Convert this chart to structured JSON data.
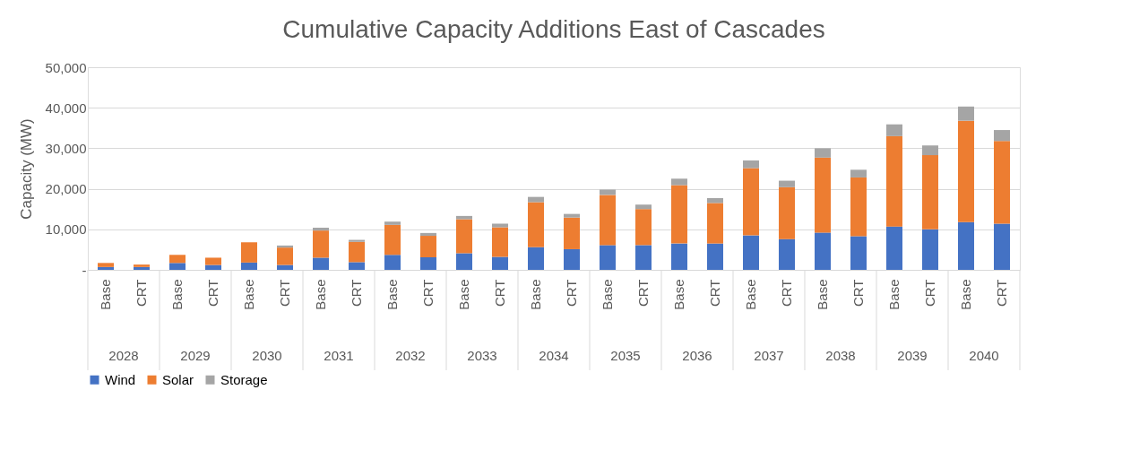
{
  "chart_data": {
    "type": "bar",
    "title": "Cumulative Capacity Additions East of Cascades",
    "ylabel": "Capacity (MW)",
    "categories": [
      "Base",
      "CRT",
      "Base",
      "CRT",
      "Base",
      "CRT",
      "Base",
      "CRT",
      "Base",
      "CRT",
      "Base",
      "CRT",
      "Base",
      "CRT",
      "Base",
      "CRT",
      "Base",
      "CRT",
      "Base",
      "CRT",
      "Base",
      "CRT",
      "Base",
      "CRT",
      "Base",
      "CRT"
    ],
    "annotations": [
      "2028",
      "2029",
      "2030",
      "2031",
      "2032",
      "2033",
      "2034",
      "2035",
      "2036",
      "2037",
      "2038",
      "2039",
      "2040"
    ],
    "stacked": true,
    "series": [
      {
        "name": "Wind",
        "color": "#4472c4",
        "values": [
          700,
          700,
          1700,
          1200,
          1800,
          1200,
          3000,
          1900,
          3700,
          3100,
          4100,
          3200,
          5600,
          5100,
          6100,
          6100,
          6500,
          6500,
          8500,
          7600,
          9200,
          8300,
          10700,
          10000,
          11800,
          11400
        ]
      },
      {
        "name": "Solar",
        "color": "#ed7d31",
        "values": [
          1000,
          600,
          2000,
          1800,
          5000,
          4300,
          6700,
          5000,
          7400,
          5300,
          8400,
          7300,
          11100,
          7800,
          12400,
          8900,
          14400,
          10000,
          16600,
          12800,
          18500,
          14500,
          22300,
          18300,
          25000,
          20400
        ]
      },
      {
        "name": "Storage",
        "color": "#a5a5a5",
        "values": [
          null,
          null,
          null,
          null,
          null,
          500,
          700,
          500,
          800,
          700,
          800,
          900,
          1300,
          900,
          1300,
          1100,
          1600,
          1200,
          1900,
          1600,
          2300,
          1900,
          2900,
          2400,
          3500,
          2700
        ]
      }
    ],
    "ylim": [
      0,
      50000
    ],
    "yticks": [
      {
        "value": 0,
        "label": "-"
      },
      {
        "value": 10000,
        "label": "10,000"
      },
      {
        "value": 20000,
        "label": "20,000"
      },
      {
        "value": 30000,
        "label": "30,000"
      },
      {
        "value": 40000,
        "label": "40,000"
      },
      {
        "value": 50000,
        "label": "50,000"
      }
    ],
    "grid": "y",
    "legend": "bottom"
  }
}
